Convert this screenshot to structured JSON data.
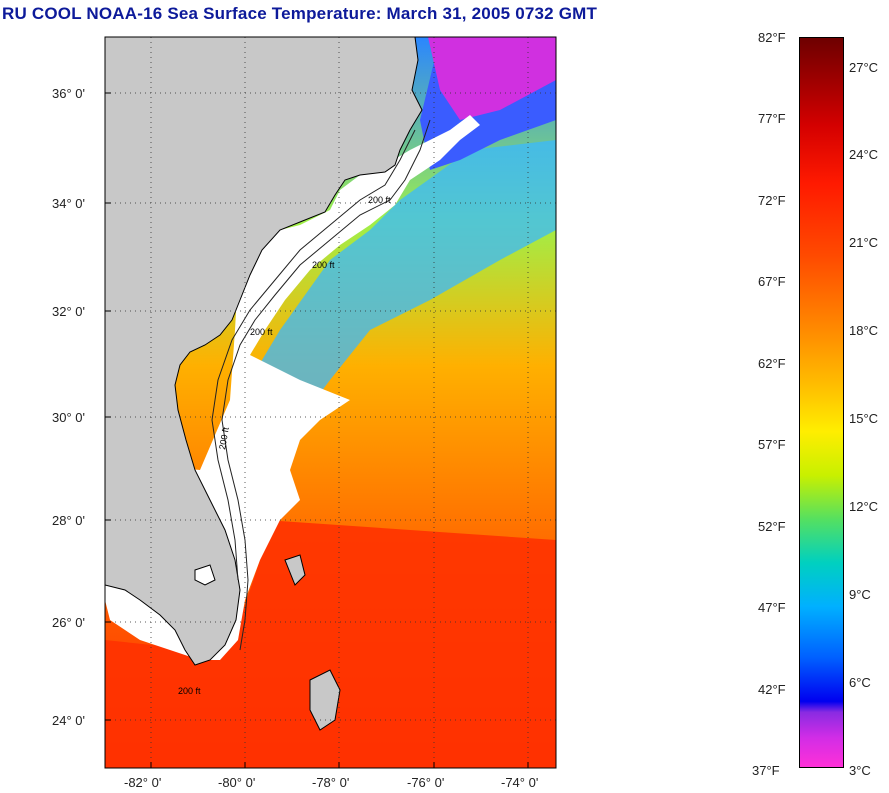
{
  "title": "RU COOL  NOAA-16  Sea Surface Temperature:  March 31, 2005 0732 GMT",
  "map": {
    "lat_labels": [
      "36° 0'",
      "34° 0'",
      "32° 0'",
      "30° 0'",
      "28° 0'",
      "26° 0'",
      "24° 0'"
    ],
    "lon_labels": [
      "-82° 0'",
      "-80° 0'",
      "-78° 0'",
      "-76° 0'",
      "-74° 0'"
    ],
    "contour_labels": [
      "200 ft",
      "200 ft",
      "200 ft",
      "200 ft",
      "200 ft"
    ],
    "colors": {
      "land": "#c8c8c8",
      "cloud": "#ffffff",
      "coast": "#000000"
    }
  },
  "colorbar": {
    "fahrenheit": [
      "82°F",
      "77°F",
      "72°F",
      "67°F",
      "62°F",
      "57°F",
      "52°F",
      "47°F",
      "42°F",
      "37°F"
    ],
    "celsius": [
      "27°C",
      "24°C",
      "21°C",
      "18°C",
      "15°C",
      "12°C",
      "9°C",
      "6°C",
      "3°C"
    ]
  }
}
